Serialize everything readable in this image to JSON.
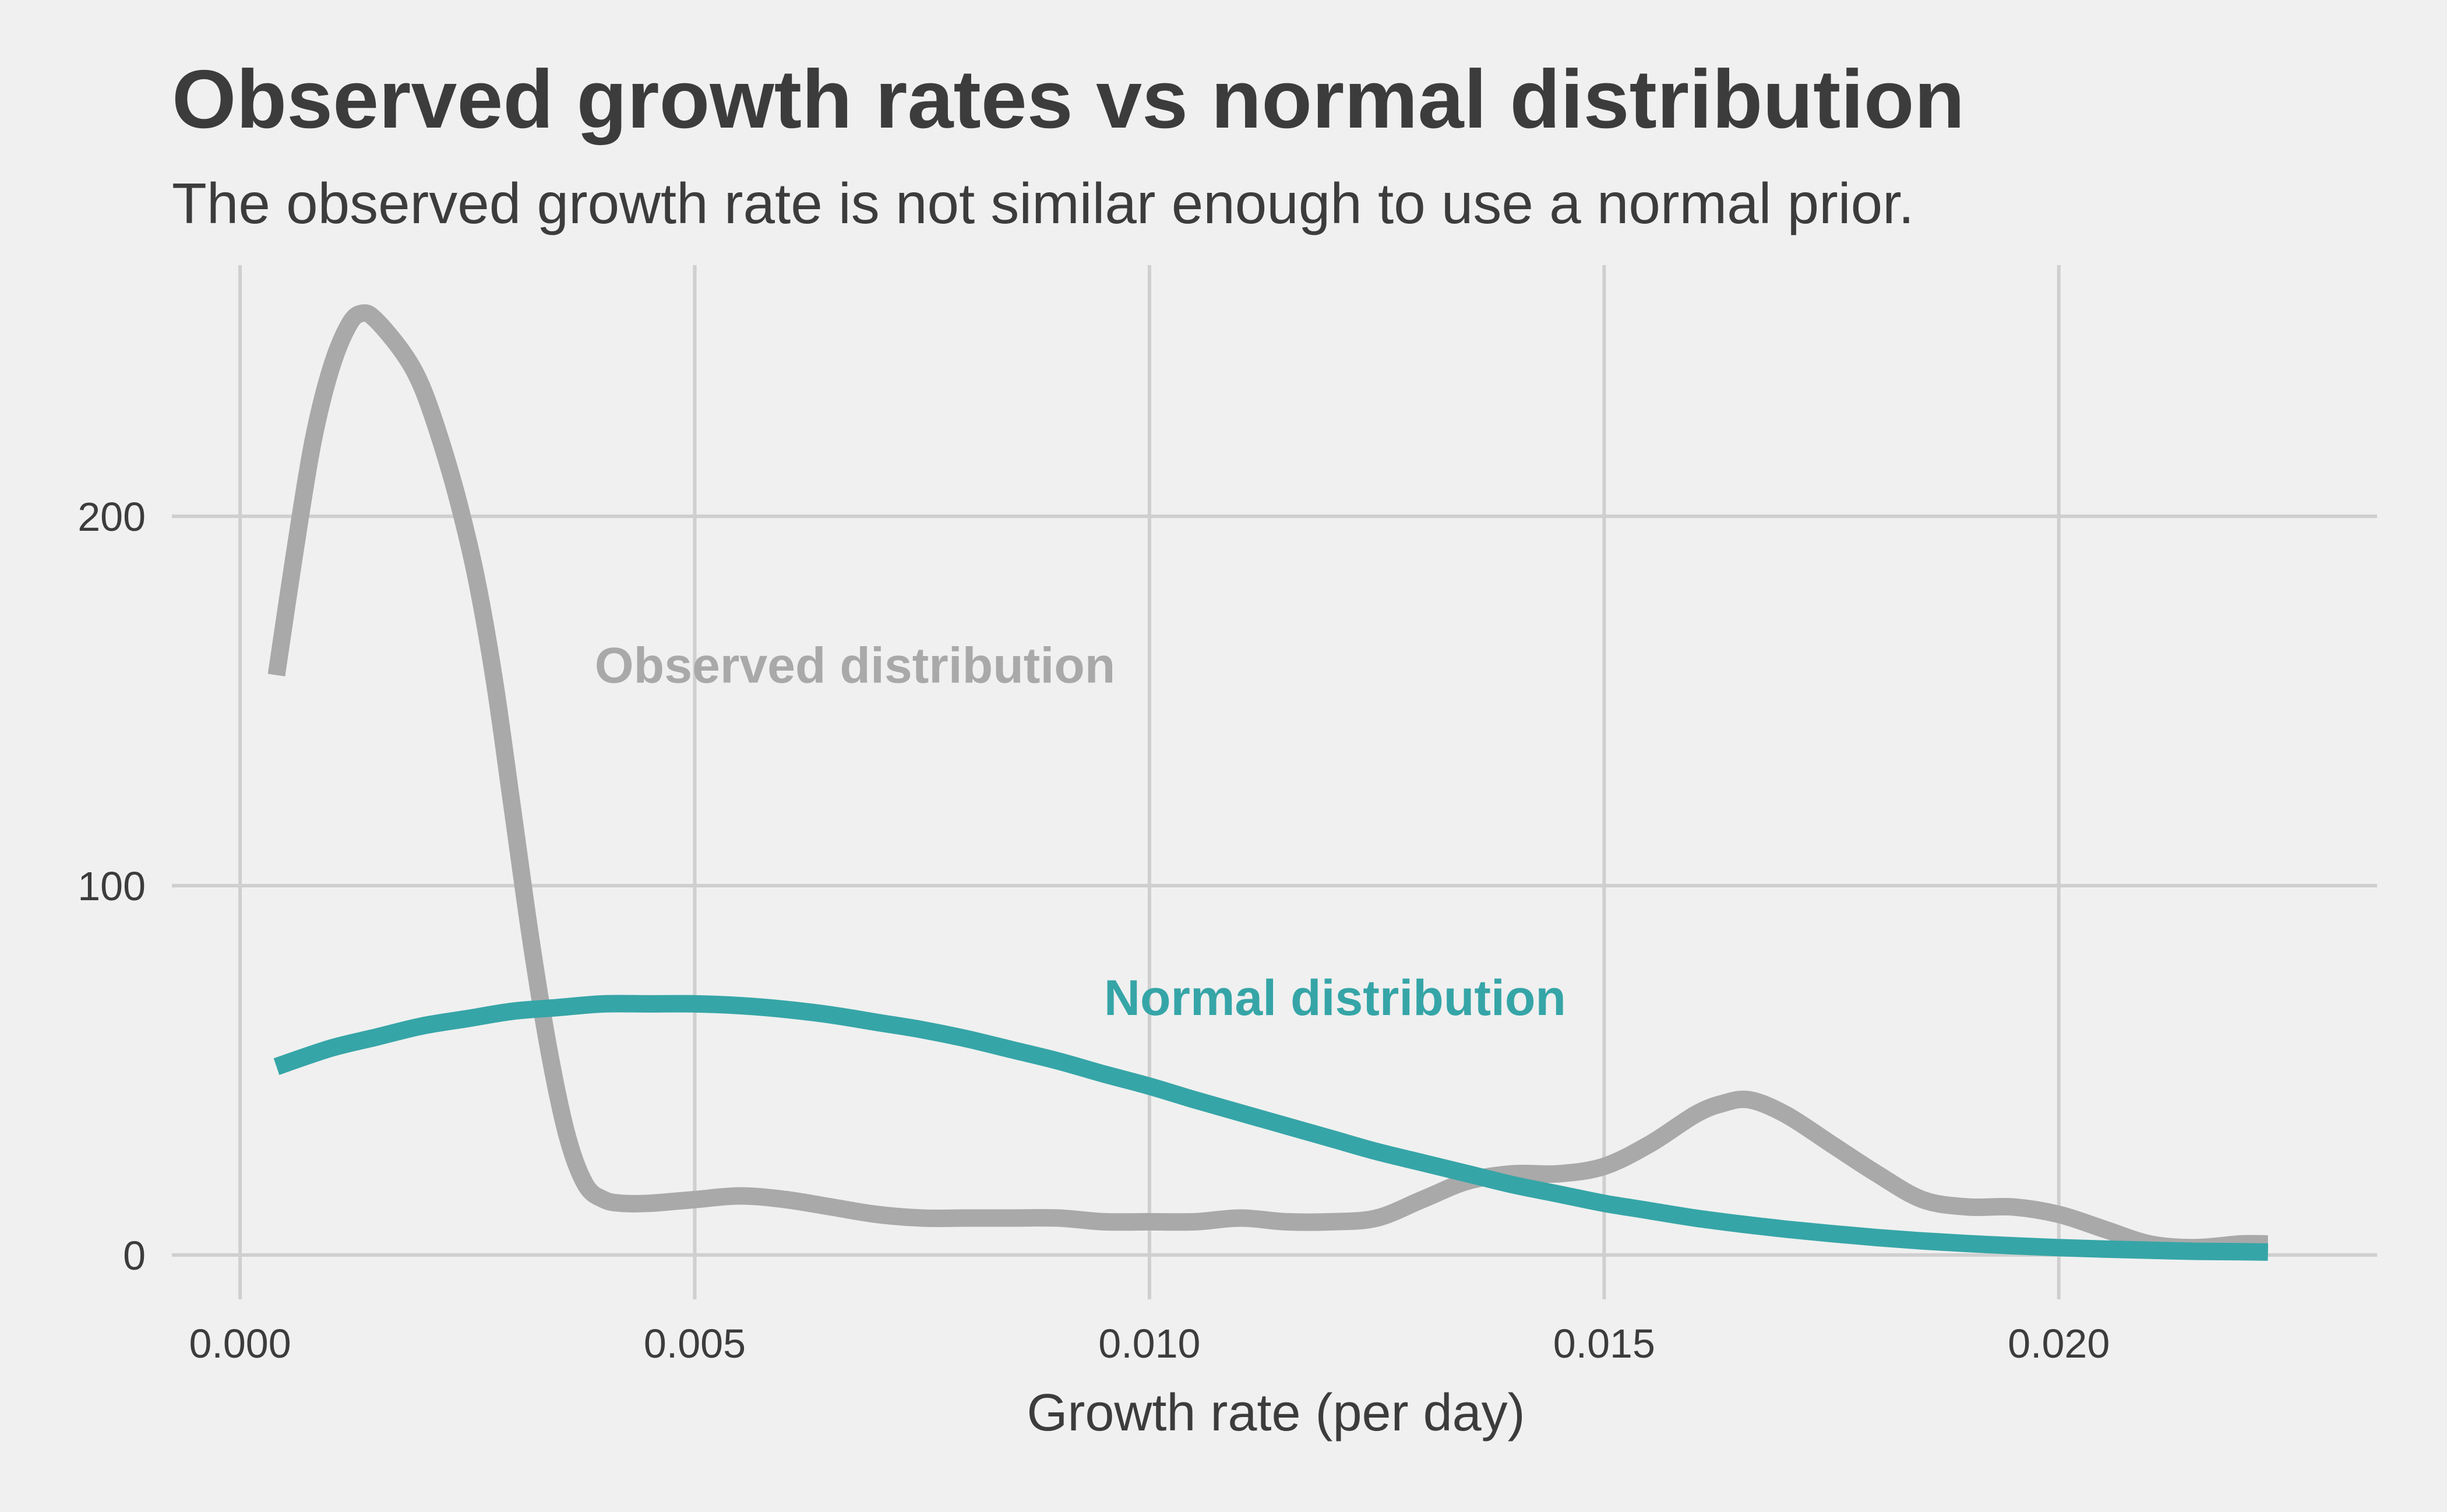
{
  "chart_data": {
    "type": "line",
    "title": "Observed growth rates vs normal distribution",
    "subtitle": "The observed growth rate is not similar enough to use a normal prior.",
    "xlabel": "Growth rate (per day)",
    "ylabel": "",
    "xlim": [
      -0.00075,
      0.0235
    ],
    "ylim": [
      -12,
      268
    ],
    "x_ticks": [
      {
        "value": 0.0,
        "label": "0.000"
      },
      {
        "value": 0.005,
        "label": "0.005"
      },
      {
        "value": 0.01,
        "label": "0.010"
      },
      {
        "value": 0.015,
        "label": "0.015"
      },
      {
        "value": 0.02,
        "label": "0.020"
      }
    ],
    "y_ticks": [
      {
        "value": 0,
        "label": "0"
      },
      {
        "value": 100,
        "label": "100"
      },
      {
        "value": 200,
        "label": "200"
      }
    ],
    "grid": true,
    "series": [
      {
        "name": "Observed distribution",
        "color": "#a9a9a9",
        "x": [
          0.0004,
          0.0006,
          0.0008,
          0.001,
          0.0012,
          0.00135,
          0.0015,
          0.0018,
          0.002,
          0.0022,
          0.0024,
          0.0026,
          0.0028,
          0.003,
          0.0032,
          0.0034,
          0.0036,
          0.0038,
          0.004,
          0.0042,
          0.0045,
          0.005,
          0.0055,
          0.006,
          0.0065,
          0.007,
          0.0075,
          0.008,
          0.0085,
          0.009,
          0.0095,
          0.01,
          0.0105,
          0.011,
          0.0115,
          0.012,
          0.0125,
          0.013,
          0.0135,
          0.014,
          0.0145,
          0.015,
          0.0155,
          0.016,
          0.0163,
          0.0166,
          0.017,
          0.0175,
          0.018,
          0.0185,
          0.019,
          0.0195,
          0.02,
          0.0205,
          0.021,
          0.0215,
          0.022,
          0.0223
        ],
        "y": [
          157,
          190,
          220,
          240,
          252,
          255,
          253,
          244,
          235,
          221,
          204,
          183,
          155,
          120,
          85,
          55,
          32,
          19,
          15,
          14,
          14,
          15,
          16,
          15,
          13,
          11,
          10,
          10,
          10,
          10,
          9,
          9,
          9,
          10,
          9,
          9,
          10,
          15,
          20,
          22,
          22,
          24,
          30,
          38,
          41,
          42,
          38,
          30,
          22,
          15,
          13,
          13,
          11,
          7,
          3,
          2,
          3,
          3
        ]
      },
      {
        "name": "Normal distribution",
        "color": "#36a5a7",
        "x": [
          0.0004,
          0.001,
          0.0015,
          0.002,
          0.0025,
          0.003,
          0.0035,
          0.004,
          0.0045,
          0.005,
          0.0055,
          0.006,
          0.0065,
          0.007,
          0.0075,
          0.008,
          0.0085,
          0.009,
          0.0095,
          0.01,
          0.0105,
          0.011,
          0.0115,
          0.012,
          0.0125,
          0.013,
          0.0135,
          0.014,
          0.0145,
          0.015,
          0.0155,
          0.016,
          0.0165,
          0.017,
          0.0175,
          0.018,
          0.0185,
          0.019,
          0.0195,
          0.02,
          0.0205,
          0.021,
          0.0215,
          0.022,
          0.0223
        ],
        "y": [
          51,
          56,
          59,
          62,
          64,
          66,
          67,
          68,
          68,
          68,
          67.5,
          66.5,
          65,
          63,
          61,
          58.5,
          55.5,
          52.5,
          49,
          45.7,
          42,
          38.5,
          35,
          31.5,
          28,
          25,
          22,
          19,
          16.5,
          14,
          12,
          10,
          8.4,
          7,
          5.8,
          4.7,
          3.8,
          3.1,
          2.5,
          2,
          1.6,
          1.3,
          1,
          0.9,
          0.8
        ]
      }
    ],
    "annotations": [
      {
        "text": "Observed distribution",
        "x": 0.0039,
        "y": 155,
        "color": "#a9a9a9"
      },
      {
        "text": "Normal distribution",
        "x": 0.0095,
        "y": 65,
        "color": "#36a5a7"
      }
    ]
  }
}
